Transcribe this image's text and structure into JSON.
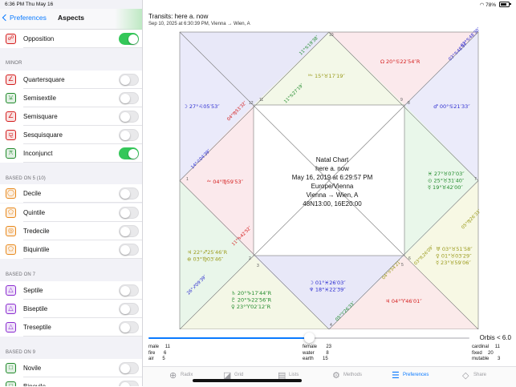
{
  "status_bar": {
    "time_date": "6:36 PM  Thu May 16",
    "battery": "78%"
  },
  "nav": {
    "back_label": "Preferences",
    "title": "Aspects"
  },
  "aspects": {
    "main": [
      {
        "label": "Opposition",
        "on": true
      }
    ],
    "minor_header": "MINOR",
    "minor": [
      {
        "label": "Quartersquare",
        "on": false
      },
      {
        "label": "Semisextile",
        "on": false
      },
      {
        "label": "Semisquare",
        "on": false
      },
      {
        "label": "Sesquisquare",
        "on": false
      },
      {
        "label": "Inconjunct",
        "on": true
      }
    ],
    "quintile_header": "BASED ON 5 (10)",
    "quintile": [
      {
        "label": "Decile",
        "on": false
      },
      {
        "label": "Quintile",
        "on": false
      },
      {
        "label": "Tredecile",
        "on": false
      },
      {
        "label": "Biquintile",
        "on": false
      }
    ],
    "septile_header": "BASED ON 7",
    "septile": [
      {
        "label": "Septile",
        "on": false
      },
      {
        "label": "Biseptile",
        "on": false
      },
      {
        "label": "Treseptile",
        "on": false
      }
    ],
    "novile_header": "BASED ON 9",
    "novile": [
      {
        "label": "Novile",
        "on": false
      },
      {
        "label": "Binovile",
        "on": false
      }
    ]
  },
  "chart_header": {
    "title": "Transits: here a. now",
    "subtitle": "Sep 10, 2025 at 6:30:39 PM, Vienna → Wien, A"
  },
  "center_info": {
    "line1": "Natal Chart",
    "line2": "here a. now",
    "line3": "May 16, 2019 at 6:29:57 PM",
    "line4": "Europe/Vienna",
    "line5": "Vienna → Wien, A",
    "line6": "48N13:00, 16E20:00"
  },
  "houses": [
    {
      "n": "1",
      "planets": [
        {
          "t": "ᴬᶜ 04°♍59′53″",
          "c": "#d41c1c"
        }
      ]
    },
    {
      "n": "2",
      "planets": [
        {
          "t": "♃ 22°♐25′46″R",
          "c": "#9a9a1a"
        },
        {
          "t": "⊕ 03°♍03′46″",
          "c": "#9a9a1a"
        }
      ]
    },
    {
      "n": "3",
      "planets": [
        {
          "t": "♄ 20°♑17′44″R",
          "c": "#1f8a2a"
        },
        {
          "t": "♇ 20°♑22′56″R",
          "c": "#1f8a2a"
        },
        {
          "t": "♀ 23°♈02′12″R",
          "c": "#1f8a2a"
        }
      ]
    },
    {
      "n": "4",
      "planets": [
        {
          "t": "☽ 01°♓26′03″",
          "c": "#2a2ad0"
        },
        {
          "t": "♆ 18°♓22′39″",
          "c": "#2a2ad0"
        }
      ]
    },
    {
      "n": "5",
      "planets": [
        {
          "t": "♃ 04°♈46′01″",
          "c": "#d41c1c"
        }
      ]
    },
    {
      "n": "6",
      "planets": [
        {
          "t": "♅ 03°♉51′58″",
          "c": "#9a9a1a"
        },
        {
          "t": "♀ 01°♉03′29″",
          "c": "#9a9a1a"
        },
        {
          "t": "☿ 23°♉59′06″",
          "c": "#9a9a1a"
        }
      ]
    },
    {
      "n": "7",
      "planets": [
        {
          "t": "♓ 27°♉07′03″",
          "c": "#1f8a2a"
        },
        {
          "t": "⊙ 25°♉31′40″",
          "c": "#1f8a2a"
        },
        {
          "t": "☿ 19°♉42′00″",
          "c": "#1f8a2a"
        }
      ]
    },
    {
      "n": "8",
      "planets": [
        {
          "t": "♂ 00°♋21′33″",
          "c": "#2a2ad0"
        }
      ]
    },
    {
      "n": "9",
      "planets": [
        {
          "t": "Ω 20°♋22′54″R",
          "c": "#d41c1c"
        }
      ]
    },
    {
      "n": "10",
      "planets": [
        {
          "t": "ᴹᶜ 15°♉17′19″",
          "c": "#9a9a1a"
        }
      ]
    },
    {
      "n": "11",
      "planets": [
        {
          "t": "",
          "c": "#1f8a2a"
        }
      ]
    },
    {
      "n": "12",
      "planets": [
        {
          "t": "☽ 27°♌05′53″",
          "c": "#2a2ad0"
        }
      ]
    }
  ],
  "edge_labels": [
    {
      "t": "11°♋19′38″",
      "c": "#1f8a2a"
    },
    {
      "t": "11°♋27′19″",
      "c": "#1f8a2a"
    },
    {
      "t": "03°♋48′57″",
      "c": "#2a2ad0"
    },
    {
      "t": "02°♋48′30″",
      "c": "#2a2ad0"
    },
    {
      "t": "14°♌04′39″",
      "c": "#2a2ad0"
    },
    {
      "t": "04°♍53′32″",
      "c": "#d41c1c"
    },
    {
      "t": "05°♍26′33″",
      "c": "#9a9a1a"
    },
    {
      "t": "03°♏26′09″",
      "c": "#9a9a1a"
    },
    {
      "t": "26°♐09′39″",
      "c": "#2a2ad0"
    },
    {
      "t": "11°♑42′52″",
      "c": "#d41c1c"
    },
    {
      "t": "05°♈26′33″",
      "c": "#1f8a2a"
    },
    {
      "t": "04°♉54′21″",
      "c": "#9a9a1a"
    }
  ],
  "orbis": {
    "label": "Orbis < 6.0",
    "value": 6.0,
    "fraction": 0.5
  },
  "stats": {
    "col1": [
      {
        "k": "male",
        "v": "11"
      },
      {
        "k": "fire",
        "v": "6"
      },
      {
        "k": "air",
        "v": "5"
      }
    ],
    "col2": [
      {
        "k": "female",
        "v": "23"
      },
      {
        "k": "water",
        "v": "8"
      },
      {
        "k": "earth",
        "v": "15"
      }
    ],
    "col3": [
      {
        "k": "cardinal",
        "v": "11"
      },
      {
        "k": "fixed",
        "v": "20"
      },
      {
        "k": "mutable",
        "v": "3"
      }
    ]
  },
  "tabs": [
    {
      "label": "Radix",
      "icon": "radix-wheel-icon"
    },
    {
      "label": "Grid",
      "icon": "grid-icon"
    },
    {
      "label": "Lists",
      "icon": "list-icon"
    },
    {
      "label": "Methods",
      "icon": "methods-icon"
    },
    {
      "label": "Preferences",
      "icon": "preferences-icon",
      "selected": true
    },
    {
      "label": "Share",
      "icon": "share-icon"
    }
  ],
  "colors": {
    "accent": "#0a7aff",
    "toggle_on": "#34c759",
    "fire": "#d41c1c",
    "earth": "#9a9a1a",
    "air": "#1f8a2a",
    "water": "#2a2ad0"
  }
}
